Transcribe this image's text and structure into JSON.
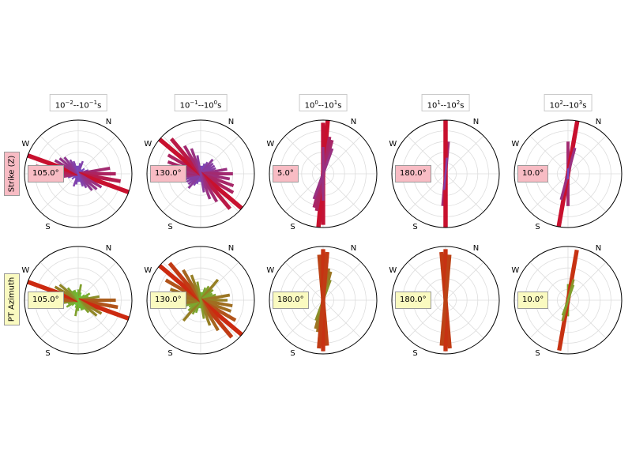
{
  "periods": [
    {
      "base1": "10",
      "exp1": "−2",
      "base2": "10",
      "exp2": "−1",
      "unit": "s"
    },
    {
      "base1": "10",
      "exp1": "−1",
      "base2": "10",
      "exp2": "0",
      "unit": "s"
    },
    {
      "base1": "10",
      "exp1": "0",
      "base2": "10",
      "exp2": "1",
      "unit": "s"
    },
    {
      "base1": "10",
      "exp1": "1",
      "base2": "10",
      "exp2": "2",
      "unit": "s"
    },
    {
      "base1": "10",
      "exp1": "2",
      "base2": "10",
      "exp2": "3",
      "unit": "s"
    }
  ],
  "rows": [
    {
      "label": "Strike (Z)",
      "box_color": "#f8bcc4",
      "medians": [
        "105.0°",
        "130.0°",
        "5.0°",
        "180.0°",
        "10.0°"
      ]
    },
    {
      "label": "PT Azimuth",
      "box_color": "#fafac0",
      "medians": [
        "105.0°",
        "130.0°",
        "180.0°",
        "180.0°",
        "10.0°"
      ]
    }
  ],
  "compass": {
    "north": "N",
    "west": "W",
    "south": "S"
  },
  "colors": {
    "strike_low": "#6a52d4",
    "strike_high": "#c8102e",
    "pt_low": "#5fd33a",
    "pt_high": "#cc2a10",
    "grid": "#dddddd",
    "outline": "#000000"
  },
  "chart_data": {
    "type": "rose",
    "description_free": true,
    "panels": [
      {
        "row": "Strike (Z)",
        "period": "10^-2 - 10^-1 s",
        "median": 105.0,
        "bins": [
          [
            0,
            0.15
          ],
          [
            10,
            0.2
          ],
          [
            20,
            0.25
          ],
          [
            30,
            0.1
          ],
          [
            40,
            0.1
          ],
          [
            50,
            0.15
          ],
          [
            60,
            0.1
          ],
          [
            70,
            0.2
          ],
          [
            80,
            0.6
          ],
          [
            90,
            0.7
          ],
          [
            100,
            0.8
          ],
          [
            110,
            1.0
          ],
          [
            120,
            0.5
          ],
          [
            130,
            0.45
          ],
          [
            140,
            0.4
          ],
          [
            150,
            0.3
          ],
          [
            160,
            0.25
          ],
          [
            170,
            0.15
          ]
        ]
      },
      {
        "row": "Strike (Z)",
        "period": "10^-1 - 10^0 s",
        "median": 130.0,
        "bins": [
          [
            0,
            0.15
          ],
          [
            10,
            0.15
          ],
          [
            20,
            0.2
          ],
          [
            30,
            0.25
          ],
          [
            40,
            0.35
          ],
          [
            50,
            0.3
          ],
          [
            60,
            0.3
          ],
          [
            70,
            0.3
          ],
          [
            80,
            0.5
          ],
          [
            90,
            0.6
          ],
          [
            100,
            0.55
          ],
          [
            110,
            0.65
          ],
          [
            120,
            0.7
          ],
          [
            130,
            1.0
          ],
          [
            140,
            0.85
          ],
          [
            150,
            0.6
          ],
          [
            160,
            0.5
          ],
          [
            170,
            0.35
          ]
        ]
      },
      {
        "row": "Strike (Z)",
        "period": "10^0 - 10^1 s",
        "median": 5.0,
        "bins": [
          [
            0,
            0.95
          ],
          [
            5,
            1.0
          ],
          [
            10,
            0.7
          ],
          [
            15,
            0.65
          ],
          [
            20,
            0.5
          ],
          [
            180,
            0.5
          ]
        ]
      },
      {
        "row": "Strike (Z)",
        "period": "10^1 - 10^2 s",
        "median": 180.0,
        "bins": [
          [
            5,
            0.6
          ],
          [
            180,
            1.0
          ],
          [
            185,
            0.3
          ]
        ]
      },
      {
        "row": "Strike (Z)",
        "period": "10^2 - 10^3 s",
        "median": 10.0,
        "bins": [
          [
            0,
            0.6
          ],
          [
            10,
            1.0
          ],
          [
            15,
            0.5
          ],
          [
            180,
            0.1
          ]
        ]
      },
      {
        "row": "PT Azimuth",
        "period": "10^-2 - 10^-1 s",
        "median": 105.0,
        "bins": [
          [
            0,
            0.2
          ],
          [
            10,
            0.3
          ],
          [
            20,
            0.15
          ],
          [
            30,
            0.1
          ],
          [
            50,
            0.15
          ],
          [
            60,
            0.25
          ],
          [
            70,
            0.2
          ],
          [
            80,
            0.4
          ],
          [
            90,
            0.7
          ],
          [
            100,
            0.75
          ],
          [
            110,
            1.0
          ],
          [
            120,
            0.5
          ],
          [
            130,
            0.45
          ],
          [
            140,
            0.3
          ],
          [
            150,
            0.2
          ],
          [
            160,
            0.2
          ],
          [
            170,
            0.15
          ]
        ]
      },
      {
        "row": "PT Azimuth",
        "period": "10^-1 - 10^0 s",
        "median": 130.0,
        "bins": [
          [
            0,
            0.15
          ],
          [
            10,
            0.15
          ],
          [
            20,
            0.25
          ],
          [
            30,
            0.3
          ],
          [
            40,
            0.5
          ],
          [
            50,
            0.3
          ],
          [
            60,
            0.25
          ],
          [
            70,
            0.3
          ],
          [
            80,
            0.55
          ],
          [
            90,
            0.5
          ],
          [
            100,
            0.6
          ],
          [
            110,
            0.6
          ],
          [
            120,
            0.75
          ],
          [
            130,
            1.0
          ],
          [
            140,
            0.9
          ],
          [
            150,
            0.65
          ],
          [
            160,
            0.5
          ],
          [
            170,
            0.35
          ]
        ]
      },
      {
        "row": "PT Azimuth",
        "period": "10^0 - 10^1 s",
        "median": 180.0,
        "bins": [
          [
            0,
            0.9
          ],
          [
            5,
            0.85
          ],
          [
            10,
            0.6
          ],
          [
            15,
            0.55
          ],
          [
            20,
            0.4
          ],
          [
            175,
            0.85
          ],
          [
            180,
            0.95
          ],
          [
            185,
            0.9
          ]
        ]
      },
      {
        "row": "PT Azimuth",
        "period": "10^1 - 10^2 s",
        "median": 180.0,
        "bins": [
          [
            0,
            0.45
          ],
          [
            175,
            0.9
          ],
          [
            180,
            0.95
          ],
          [
            185,
            0.85
          ]
        ]
      },
      {
        "row": "PT Azimuth",
        "period": "10^2 - 10^3 s",
        "median": 10.0,
        "bins": [
          [
            0,
            0.3
          ],
          [
            10,
            0.95
          ],
          [
            15,
            0.4
          ],
          [
            20,
            0.3
          ]
        ]
      }
    ]
  }
}
